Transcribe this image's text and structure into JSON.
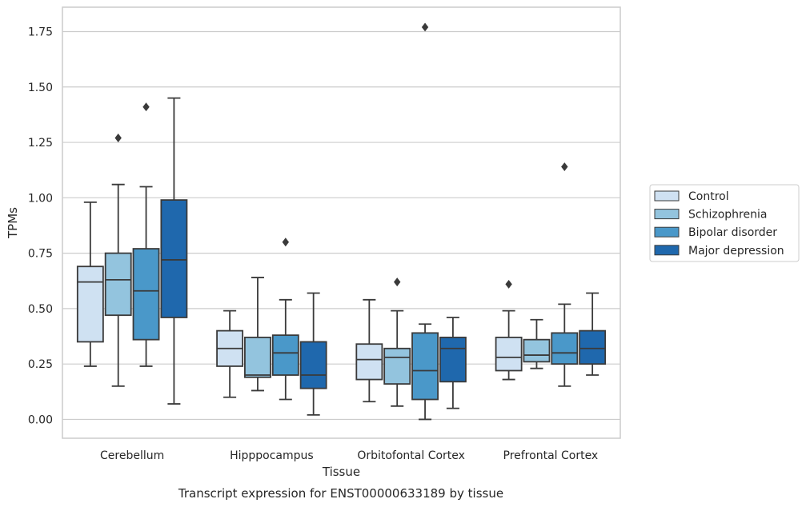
{
  "chart_data": {
    "type": "box",
    "title": "",
    "caption": "Transcript expression for ENST00000633189 by tissue",
    "xlabel": "Tissue",
    "ylabel": "TPMs",
    "ylim": [
      -0.085,
      1.86
    ],
    "yticks": [
      "0.00",
      "0.25",
      "0.50",
      "0.75",
      "1.00",
      "1.25",
      "1.50",
      "1.75"
    ],
    "ytick_values": [
      0.0,
      0.25,
      0.5,
      0.75,
      1.0,
      1.25,
      1.5,
      1.75
    ],
    "grid": true,
    "legend_position": "right",
    "categories": [
      "Cerebellum",
      "Hipppocampus",
      "Orbitofontal Cortex",
      "Prefrontal Cortex"
    ],
    "series": [
      {
        "name": "Control",
        "color": "#cfe1f2",
        "boxes": [
          {
            "whisker_low": 0.24,
            "q1": 0.35,
            "median": 0.62,
            "q3": 0.69,
            "whisker_high": 0.98,
            "outliers": []
          },
          {
            "whisker_low": 0.1,
            "q1": 0.24,
            "median": 0.32,
            "q3": 0.4,
            "whisker_high": 0.49,
            "outliers": []
          },
          {
            "whisker_low": 0.08,
            "q1": 0.18,
            "median": 0.27,
            "q3": 0.34,
            "whisker_high": 0.54,
            "outliers": []
          },
          {
            "whisker_low": 0.18,
            "q1": 0.22,
            "median": 0.28,
            "q3": 0.37,
            "whisker_high": 0.49,
            "outliers": [
              0.61
            ]
          }
        ]
      },
      {
        "name": "Schizophrenia",
        "color": "#93c4de",
        "boxes": [
          {
            "whisker_low": 0.15,
            "q1": 0.47,
            "median": 0.63,
            "q3": 0.75,
            "whisker_high": 1.06,
            "outliers": [
              1.27
            ]
          },
          {
            "whisker_low": 0.13,
            "q1": 0.19,
            "median": 0.2,
            "q3": 0.37,
            "whisker_high": 0.64,
            "outliers": []
          },
          {
            "whisker_low": 0.06,
            "q1": 0.16,
            "median": 0.28,
            "q3": 0.32,
            "whisker_high": 0.49,
            "outliers": [
              0.62
            ]
          },
          {
            "whisker_low": 0.23,
            "q1": 0.26,
            "median": 0.29,
            "q3": 0.36,
            "whisker_high": 0.45,
            "outliers": []
          }
        ]
      },
      {
        "name": "Bipolar disorder",
        "color": "#4a98c9",
        "boxes": [
          {
            "whisker_low": 0.24,
            "q1": 0.36,
            "median": 0.58,
            "q3": 0.77,
            "whisker_high": 1.05,
            "outliers": [
              1.41
            ]
          },
          {
            "whisker_low": 0.09,
            "q1": 0.2,
            "median": 0.3,
            "q3": 0.38,
            "whisker_high": 0.54,
            "outliers": [
              0.8
            ]
          },
          {
            "whisker_low": 0.0,
            "q1": 0.09,
            "median": 0.22,
            "q3": 0.39,
            "whisker_high": 0.43,
            "outliers": [
              1.77
            ]
          },
          {
            "whisker_low": 0.15,
            "q1": 0.25,
            "median": 0.3,
            "q3": 0.39,
            "whisker_high": 0.52,
            "outliers": [
              1.14
            ]
          }
        ]
      },
      {
        "name": "Major depression",
        "color": "#1f68ad",
        "boxes": [
          {
            "whisker_low": 0.07,
            "q1": 0.46,
            "median": 0.72,
            "q3": 0.99,
            "whisker_high": 1.45,
            "outliers": []
          },
          {
            "whisker_low": 0.02,
            "q1": 0.14,
            "median": 0.2,
            "q3": 0.35,
            "whisker_high": 0.57,
            "outliers": []
          },
          {
            "whisker_low": 0.05,
            "q1": 0.17,
            "median": 0.32,
            "q3": 0.37,
            "whisker_high": 0.46,
            "outliers": []
          },
          {
            "whisker_low": 0.2,
            "q1": 0.25,
            "median": 0.32,
            "q3": 0.4,
            "whisker_high": 0.57,
            "outliers": []
          }
        ]
      }
    ]
  }
}
